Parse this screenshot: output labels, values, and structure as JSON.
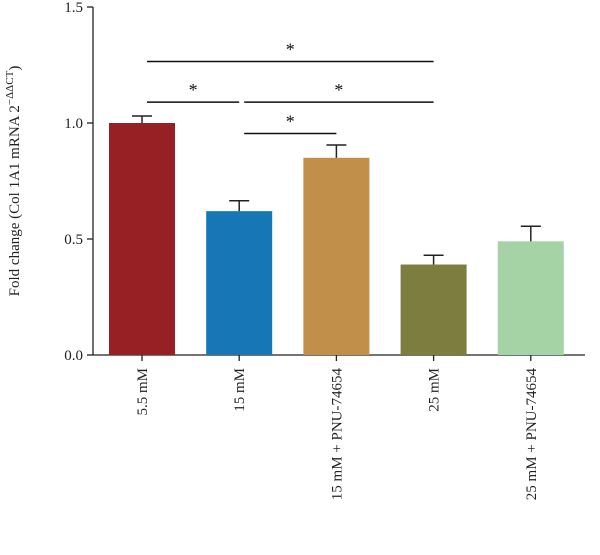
{
  "chart_data": {
    "type": "bar",
    "ylabel": "Fold change (Col 1A1 mRNA 2",
    "ylabel_sup": "−ΔΔCT",
    "ylabel_close": ")",
    "xlabel": "",
    "ylim": [
      0,
      1.5
    ],
    "yticks": [
      0.0,
      0.5,
      1.0,
      1.5
    ],
    "ytick_labels": [
      "0.0",
      "0.5",
      "1.0",
      "1.5"
    ],
    "categories": [
      "5.5 mM",
      "15 mM",
      "15 mM + PNU-74654",
      "25 mM",
      "25 mM + PNU-74654"
    ],
    "values": [
      1.0,
      0.62,
      0.85,
      0.39,
      0.49
    ],
    "errors": [
      0.03,
      0.045,
      0.055,
      0.04,
      0.065
    ],
    "colors": [
      "#962024",
      "#1776b6",
      "#c28f4b",
      "#7d7d3f",
      "#a6d3a6"
    ],
    "significance": [
      {
        "from": 0,
        "to": 3,
        "y": 1.265,
        "label": "*"
      },
      {
        "from": 0,
        "to": 1,
        "y": 1.09,
        "label": "*"
      },
      {
        "from": 1,
        "to": 3,
        "y": 1.09,
        "label": "*"
      },
      {
        "from": 1,
        "to": 2,
        "y": 0.955,
        "label": "*"
      }
    ]
  }
}
